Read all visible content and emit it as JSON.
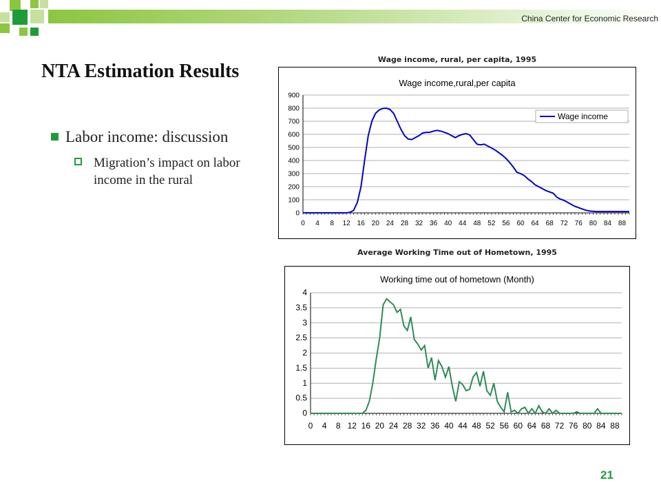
{
  "header": {
    "org": "China Center  for Economic Research"
  },
  "slide": {
    "title": "NTA Estimation Results",
    "bullet1": "Labor income: discussion",
    "bullet2": "Migration’s impact on labor income in the rural",
    "page_number": "21"
  },
  "colors": {
    "accent": "#1f9c3a",
    "bar": "#8cc63f",
    "wage_line": "#0000cc",
    "time_line": "#2e8b57"
  },
  "chart_data": [
    {
      "type": "line",
      "caption": "Wage income, rural, per capita, 1995",
      "title": "Wage income,rural,per capita",
      "legend": "top-right",
      "ylim": [
        0,
        900
      ],
      "yticks": [
        "0",
        "100",
        "200",
        "300",
        "400",
        "500",
        "600",
        "700",
        "800",
        "900"
      ],
      "xticks": [
        "0",
        "4",
        "8",
        "12",
        "16",
        "20",
        "24",
        "28",
        "32",
        "36",
        "40",
        "44",
        "48",
        "52",
        "56",
        "60",
        "64",
        "68",
        "72",
        "76",
        "80",
        "84",
        "88"
      ],
      "xlim": [
        0,
        90
      ],
      "grid": true,
      "series": [
        {
          "name": "Wage income",
          "points": [
            [
              0,
              0
            ],
            [
              12,
              0
            ],
            [
              13,
              5
            ],
            [
              14,
              20
            ],
            [
              15,
              80
            ],
            [
              16,
              200
            ],
            [
              17,
              400
            ],
            [
              18,
              590
            ],
            [
              19,
              700
            ],
            [
              20,
              760
            ],
            [
              21,
              785
            ],
            [
              22,
              798
            ],
            [
              23,
              800
            ],
            [
              24,
              790
            ],
            [
              25,
              760
            ],
            [
              26,
              700
            ],
            [
              27,
              640
            ],
            [
              28,
              590
            ],
            [
              29,
              565
            ],
            [
              30,
              560
            ],
            [
              31,
              575
            ],
            [
              32,
              590
            ],
            [
              33,
              610
            ],
            [
              34,
              615
            ],
            [
              35,
              615
            ],
            [
              36,
              625
            ],
            [
              37,
              630
            ],
            [
              38,
              625
            ],
            [
              39,
              615
            ],
            [
              40,
              605
            ],
            [
              41,
              590
            ],
            [
              42,
              575
            ],
            [
              43,
              590
            ],
            [
              44,
              600
            ],
            [
              45,
              605
            ],
            [
              46,
              595
            ],
            [
              47,
              560
            ],
            [
              48,
              525
            ],
            [
              49,
              520
            ],
            [
              50,
              525
            ],
            [
              51,
              510
            ],
            [
              52,
              495
            ],
            [
              53,
              480
            ],
            [
              54,
              460
            ],
            [
              55,
              440
            ],
            [
              56,
              415
            ],
            [
              57,
              385
            ],
            [
              58,
              350
            ],
            [
              59,
              310
            ],
            [
              60,
              300
            ],
            [
              61,
              285
            ],
            [
              62,
              260
            ],
            [
              63,
              240
            ],
            [
              64,
              215
            ],
            [
              65,
              200
            ],
            [
              66,
              185
            ],
            [
              67,
              170
            ],
            [
              68,
              160
            ],
            [
              69,
              150
            ],
            [
              70,
              120
            ],
            [
              71,
              105
            ],
            [
              72,
              95
            ],
            [
              73,
              80
            ],
            [
              74,
              65
            ],
            [
              75,
              50
            ],
            [
              76,
              40
            ],
            [
              77,
              30
            ],
            [
              78,
              20
            ],
            [
              79,
              15
            ],
            [
              80,
              12
            ],
            [
              81,
              10
            ],
            [
              82,
              10
            ],
            [
              83,
              10
            ],
            [
              84,
              10
            ],
            [
              85,
              10
            ],
            [
              86,
              10
            ],
            [
              87,
              10
            ],
            [
              88,
              10
            ],
            [
              89,
              10
            ],
            [
              90,
              10
            ]
          ]
        }
      ]
    },
    {
      "type": "line",
      "caption": "Average Working Time out of Hometown, 1995",
      "title": "Working time out of hometown (Month)",
      "ylim": [
        0,
        4
      ],
      "yticks": [
        "0",
        "0.5",
        "1",
        "1.5",
        "2",
        "2.5",
        "3",
        "3.5",
        "4"
      ],
      "xticks": [
        "0",
        "4",
        "8",
        "12",
        "16",
        "20",
        "24",
        "28",
        "32",
        "36",
        "40",
        "44",
        "48",
        "52",
        "56",
        "60",
        "64",
        "68",
        "72",
        "76",
        "80",
        "84",
        "88"
      ],
      "xlim": [
        0,
        90
      ],
      "grid": true,
      "series": [
        {
          "points": [
            [
              0,
              0
            ],
            [
              15,
              0
            ],
            [
              16,
              0.1
            ],
            [
              17,
              0.4
            ],
            [
              18,
              1.0
            ],
            [
              19,
              1.8
            ],
            [
              20,
              2.5
            ],
            [
              21,
              3.6
            ],
            [
              22,
              3.8
            ],
            [
              23,
              3.7
            ],
            [
              24,
              3.6
            ],
            [
              25,
              3.35
            ],
            [
              26,
              3.45
            ],
            [
              27,
              2.9
            ],
            [
              28,
              2.75
            ],
            [
              29,
              3.2
            ],
            [
              30,
              2.45
            ],
            [
              31,
              2.3
            ],
            [
              32,
              2.1
            ],
            [
              33,
              2.25
            ],
            [
              34,
              1.5
            ],
            [
              35,
              1.85
            ],
            [
              36,
              1.1
            ],
            [
              37,
              1.75
            ],
            [
              38,
              1.55
            ],
            [
              39,
              1.2
            ],
            [
              40,
              1.55
            ],
            [
              41,
              0.9
            ],
            [
              42,
              0.4
            ],
            [
              43,
              1.05
            ],
            [
              44,
              0.95
            ],
            [
              45,
              0.75
            ],
            [
              46,
              0.8
            ],
            [
              47,
              1.2
            ],
            [
              48,
              1.35
            ],
            [
              49,
              0.9
            ],
            [
              50,
              1.4
            ],
            [
              51,
              0.75
            ],
            [
              52,
              0.6
            ],
            [
              53,
              1.0
            ],
            [
              54,
              0.4
            ],
            [
              55,
              0.2
            ],
            [
              56,
              0.05
            ],
            [
              57,
              0.7
            ],
            [
              58,
              0.05
            ],
            [
              59,
              0.1
            ],
            [
              60,
              0.0
            ],
            [
              61,
              0.15
            ],
            [
              62,
              0.2
            ],
            [
              63,
              0.0
            ],
            [
              64,
              0.15
            ],
            [
              65,
              0.0
            ],
            [
              66,
              0.25
            ],
            [
              67,
              0.05
            ],
            [
              68,
              0.0
            ],
            [
              69,
              0.15
            ],
            [
              70,
              0.0
            ],
            [
              71,
              0.1
            ],
            [
              72,
              0.0
            ],
            [
              76,
              0.0
            ],
            [
              77,
              0.05
            ],
            [
              78,
              0.0
            ],
            [
              82,
              0.0
            ],
            [
              83,
              0.15
            ],
            [
              84,
              0.0
            ],
            [
              90,
              0.0
            ]
          ]
        }
      ]
    }
  ]
}
